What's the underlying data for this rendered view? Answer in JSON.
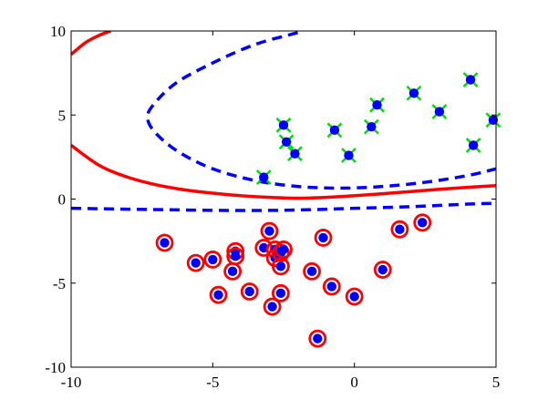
{
  "chart_data": {
    "type": "scatter",
    "xlim": [
      -10,
      5
    ],
    "ylim": [
      -10,
      10
    ],
    "xticks": [
      -10,
      -5,
      0,
      5
    ],
    "yticks": [
      -10,
      -5,
      0,
      5,
      10
    ],
    "xtick_labels": [
      "-10",
      "-5",
      "0",
      "5"
    ],
    "ytick_labels": [
      "-10",
      "-5",
      "0",
      "5",
      "10"
    ],
    "grid": false,
    "series": [
      {
        "marker": "blue-dot-green-x",
        "point_color": "#0000ff",
        "x_color": "#00dd00",
        "points": [
          {
            "x": -2.5,
            "y": 4.4
          },
          {
            "x": -2.4,
            "y": 3.4
          },
          {
            "x": -2.1,
            "y": 2.7
          },
          {
            "x": -3.2,
            "y": 1.3
          },
          {
            "x": -0.7,
            "y": 4.1
          },
          {
            "x": -0.2,
            "y": 2.6
          },
          {
            "x": 0.6,
            "y": 4.3
          },
          {
            "x": 0.8,
            "y": 5.6
          },
          {
            "x": 2.1,
            "y": 6.3
          },
          {
            "x": 3.0,
            "y": 5.2
          },
          {
            "x": 4.1,
            "y": 7.1
          },
          {
            "x": 4.2,
            "y": 3.2
          },
          {
            "x": 4.9,
            "y": 4.7
          }
        ]
      },
      {
        "marker": "blue-dot-red-circle",
        "point_color": "#0000ff",
        "ring_color": "#ff0000",
        "points": [
          {
            "x": -6.7,
            "y": -2.6
          },
          {
            "x": -5.6,
            "y": -3.8
          },
          {
            "x": -5.0,
            "y": -3.6
          },
          {
            "x": -4.8,
            "y": -5.7
          },
          {
            "x": -4.2,
            "y": -3.1
          },
          {
            "x": -4.3,
            "y": -4.3
          },
          {
            "x": -4.2,
            "y": -3.4
          },
          {
            "x": -3.7,
            "y": -5.5
          },
          {
            "x": -3.2,
            "y": -2.9
          },
          {
            "x": -3.0,
            "y": -1.9
          },
          {
            "x": -2.8,
            "y": -3.0
          },
          {
            "x": -2.8,
            "y": -3.5
          },
          {
            "x": -2.6,
            "y": -3.2
          },
          {
            "x": -2.5,
            "y": -3.0
          },
          {
            "x": -2.6,
            "y": -4.0
          },
          {
            "x": -2.6,
            "y": -5.6
          },
          {
            "x": -2.9,
            "y": -6.4
          },
          {
            "x": -1.5,
            "y": -4.3
          },
          {
            "x": -1.1,
            "y": -2.3
          },
          {
            "x": -0.8,
            "y": -5.2
          },
          {
            "x": 0.0,
            "y": -5.8
          },
          {
            "x": 1.0,
            "y": -4.2
          },
          {
            "x": 1.6,
            "y": -1.8
          },
          {
            "x": 2.4,
            "y": -1.4
          },
          {
            "x": -1.3,
            "y": -8.3
          }
        ]
      }
    ],
    "curves": [
      {
        "style": "solid",
        "color": "#ff0000",
        "points": [
          [
            -10,
            8.6
          ],
          [
            -9.5,
            9.3
          ],
          [
            -9.0,
            9.75
          ],
          [
            -8.6,
            10.0
          ]
        ]
      },
      {
        "style": "solid",
        "color": "#ff0000",
        "points": [
          [
            -10,
            3.2
          ],
          [
            -9,
            2.0
          ],
          [
            -8,
            1.3
          ],
          [
            -7,
            0.85
          ],
          [
            -6,
            0.55
          ],
          [
            -5,
            0.35
          ],
          [
            -4,
            0.2
          ],
          [
            -3,
            0.1
          ],
          [
            -2,
            0.05
          ],
          [
            -1,
            0.1
          ],
          [
            0,
            0.2
          ],
          [
            1,
            0.32
          ],
          [
            2,
            0.45
          ],
          [
            3,
            0.58
          ],
          [
            4,
            0.7
          ],
          [
            5,
            0.8
          ]
        ]
      },
      {
        "style": "dashed",
        "color": "#0000ff",
        "points": [
          [
            -2.0,
            9.9
          ],
          [
            -3.5,
            9.2
          ],
          [
            -5.0,
            8.1
          ],
          [
            -6.3,
            6.9
          ],
          [
            -7.1,
            5.6
          ],
          [
            -7.3,
            4.8
          ],
          [
            -7.0,
            3.9
          ],
          [
            -6.2,
            2.8
          ],
          [
            -5.0,
            1.8
          ],
          [
            -3.5,
            1.1
          ],
          [
            -2.0,
            0.75
          ],
          [
            -0.5,
            0.65
          ],
          [
            1.0,
            0.75
          ],
          [
            2.5,
            1.0
          ],
          [
            4.0,
            1.4
          ],
          [
            5.0,
            1.8
          ]
        ]
      },
      {
        "style": "dashed",
        "color": "#0000ff",
        "points": [
          [
            -10,
            -0.55
          ],
          [
            -8,
            -0.6
          ],
          [
            -6,
            -0.65
          ],
          [
            -4,
            -0.68
          ],
          [
            -2,
            -0.65
          ],
          [
            0,
            -0.55
          ],
          [
            2,
            -0.45
          ],
          [
            4,
            -0.3
          ],
          [
            5,
            -0.25
          ]
        ]
      }
    ]
  }
}
